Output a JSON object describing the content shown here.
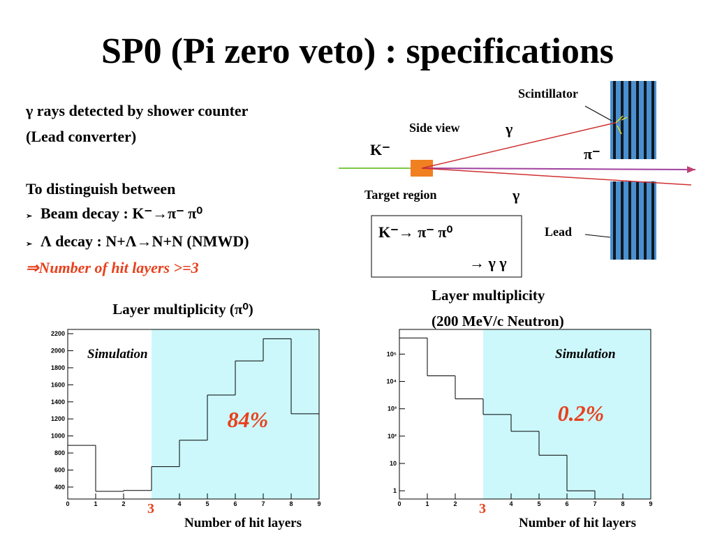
{
  "title": "SP0 (Pi zero veto) : specifications",
  "text": {
    "line1": "γ rays detected by shower counter",
    "line2": "(Lead converter)",
    "line3": "To distinguish between",
    "bullet1": "Beam decay : K⁻→π⁻ π⁰",
    "bullet2": "Λ decay : N+Λ→N+N (NMWD)",
    "conclusion": "⇒Number of hit layers >=3"
  },
  "diagram": {
    "scintillator": "Scintillator",
    "side_view": "Side view",
    "gamma_top": "γ",
    "kaon": "K⁻",
    "pion": "π⁻",
    "target": "Target region",
    "gamma_bottom": "γ",
    "lead": "Lead",
    "decay1": "K⁻→ π⁻ π⁰",
    "decay2": "→ γ γ"
  },
  "chart_data": [
    {
      "type": "histogram",
      "title": "Layer multiplicity (π⁰)",
      "bins": [
        0,
        1,
        2,
        3,
        4,
        5,
        6,
        7,
        8,
        9
      ],
      "values": [
        890,
        350,
        360,
        640,
        950,
        1480,
        1880,
        2140,
        1260
      ],
      "xlim": [
        0,
        9
      ],
      "xticks": [
        0,
        1,
        2,
        4,
        5,
        6,
        7,
        8,
        9
      ],
      "ylim": [
        260,
        2250
      ],
      "yticks": [
        400,
        600,
        800,
        1000,
        1200,
        1400,
        1600,
        1800,
        2000,
        2200
      ],
      "log_y": false,
      "annotation": "Simulation",
      "fraction": "84%",
      "highlight_from": 3,
      "highlight_color": "#ccf8fc",
      "xlabel": "Number of hit layers"
    },
    {
      "type": "histogram",
      "title": "Layer multiplicity",
      "subtitle": "(200 MeV/c Neutron)",
      "bins": [
        0,
        1,
        2,
        3,
        4,
        5,
        6,
        7,
        8,
        9
      ],
      "values": [
        390000,
        16000,
        2300,
        620,
        150,
        20,
        1,
        0,
        0
      ],
      "xlim": [
        0,
        9
      ],
      "xticks": [
        0,
        1,
        2,
        4,
        5,
        6,
        7,
        8,
        9
      ],
      "ylim": [
        0.5,
        800000
      ],
      "yticks": [
        1,
        10,
        {
          "value": 100,
          "label": "10²"
        },
        {
          "value": 1000,
          "label": "10³"
        },
        {
          "value": 10000,
          "label": "10⁴"
        },
        {
          "value": 100000,
          "label": "10⁵"
        }
      ],
      "log_y": true,
      "annotation": "Simulation",
      "fraction": "0.2%",
      "highlight_from": 3,
      "highlight_color": "#ccf8fc",
      "xlabel": "Number of hit layers"
    }
  ]
}
